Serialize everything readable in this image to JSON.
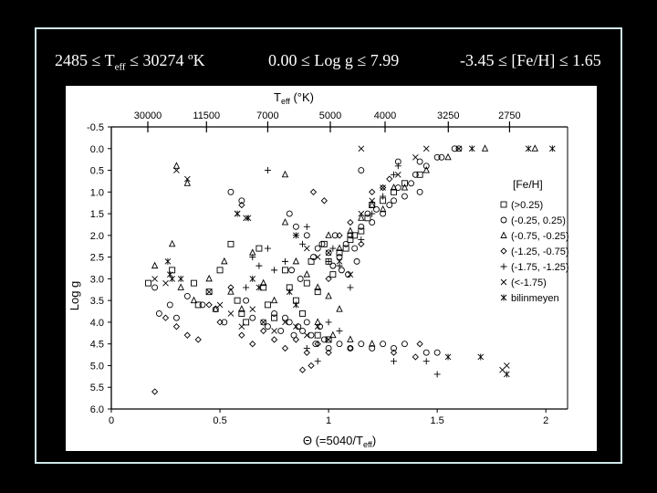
{
  "header": {
    "teff_range": {
      "low": "2485",
      "rel1": "≤",
      "var": "T",
      "var_sub": "eff",
      "rel2": "≤",
      "high": "30274 ºK"
    },
    "logg_range": "0.00 ≤ Log g ≤ 7.99",
    "feh_range": "-3.45 ≤ [Fe/H] ≤ 1.65"
  },
  "chart_data": {
    "type": "scatter",
    "title": "",
    "xlabel": {
      "main": "Θ (=5040/T",
      "sub": "eff",
      "end": ")"
    },
    "ylabel": "Log g",
    "top_axis_label": {
      "main": "T",
      "sub": "eff",
      "end": " (°K)"
    },
    "xlim": [
      0,
      2.1
    ],
    "ylim": [
      -0.5,
      6.0
    ],
    "y_inverted": true,
    "grid": false,
    "legend_placement": "right",
    "x_ticks": [
      {
        "value": 0,
        "label": "0"
      },
      {
        "value": 0.5,
        "label": "0.5"
      },
      {
        "value": 1,
        "label": "1"
      },
      {
        "value": 1.5,
        "label": "1.5"
      },
      {
        "value": 2,
        "label": "2"
      }
    ],
    "y_ticks": [
      {
        "value": -0.5,
        "label": "-0.5"
      },
      {
        "value": 0.0,
        "label": "0.0"
      },
      {
        "value": 0.5,
        "label": "0.5"
      },
      {
        "value": 1.0,
        "label": "1.0"
      },
      {
        "value": 1.5,
        "label": "1.5"
      },
      {
        "value": 2.0,
        "label": "2.0"
      },
      {
        "value": 2.5,
        "label": "2.5"
      },
      {
        "value": 3.0,
        "label": "3.0"
      },
      {
        "value": 3.5,
        "label": "3.5"
      },
      {
        "value": 4.0,
        "label": "4.0"
      },
      {
        "value": 4.5,
        "label": "4.5"
      },
      {
        "value": 5.0,
        "label": "5.0"
      },
      {
        "value": 5.5,
        "label": "5.5"
      },
      {
        "value": 6.0,
        "label": "6.0"
      }
    ],
    "top_ticks": [
      {
        "theta": 0.168,
        "label": "30000"
      },
      {
        "theta": 0.438,
        "label": "11500"
      },
      {
        "theta": 0.72,
        "label": "7000"
      },
      {
        "theta": 1.008,
        "label": "5000"
      },
      {
        "theta": 1.26,
        "label": "4000"
      },
      {
        "theta": 1.551,
        "label": "3250"
      },
      {
        "theta": 1.833,
        "label": "2750"
      }
    ],
    "legend_title": "[Fe/H]",
    "series": [
      {
        "name": "(>0.25)",
        "marker": "square",
        "points": [
          [
            0.17,
            3.1
          ],
          [
            0.28,
            2.8
          ],
          [
            0.38,
            3.1
          ],
          [
            0.4,
            3.6
          ],
          [
            0.45,
            3.3
          ],
          [
            0.5,
            2.8
          ],
          [
            0.55,
            2.2
          ],
          [
            0.58,
            3.5
          ],
          [
            0.6,
            3.8
          ],
          [
            0.62,
            4.0
          ],
          [
            0.68,
            2.3
          ],
          [
            0.7,
            3.2
          ],
          [
            0.72,
            3.6
          ],
          [
            0.75,
            3.9
          ],
          [
            0.8,
            2.8
          ],
          [
            0.82,
            3.2
          ],
          [
            0.85,
            3.5
          ],
          [
            0.88,
            3.8
          ],
          [
            0.9,
            3.1
          ],
          [
            0.92,
            2.6
          ],
          [
            0.95,
            3.3
          ],
          [
            0.98,
            2.2
          ],
          [
            1.0,
            2.6
          ],
          [
            1.02,
            2.9
          ],
          [
            1.05,
            2.4
          ],
          [
            1.08,
            2.3
          ],
          [
            1.1,
            2.1
          ],
          [
            1.12,
            2.0
          ],
          [
            1.15,
            1.9
          ],
          [
            1.18,
            1.6
          ],
          [
            1.2,
            1.3
          ],
          [
            1.25,
            1.2
          ],
          [
            1.3,
            1.0
          ],
          [
            1.35,
            0.8
          ],
          [
            1.42,
            0.6
          ],
          [
            0.95,
            4.3
          ],
          [
            1.0,
            4.4
          ]
        ]
      },
      {
        "name": "(-0.25, 0.25)",
        "marker": "circle",
        "points": [
          [
            0.2,
            3.2
          ],
          [
            0.22,
            3.8
          ],
          [
            0.27,
            3.6
          ],
          [
            0.3,
            3.9
          ],
          [
            0.35,
            3.4
          ],
          [
            0.42,
            3.6
          ],
          [
            0.48,
            3.7
          ],
          [
            0.52,
            4.0
          ],
          [
            0.55,
            1.0
          ],
          [
            0.6,
            1.2
          ],
          [
            0.62,
            3.5
          ],
          [
            0.65,
            3.9
          ],
          [
            0.7,
            4.0
          ],
          [
            0.72,
            4.1
          ],
          [
            0.75,
            3.8
          ],
          [
            0.78,
            4.2
          ],
          [
            0.8,
            3.9
          ],
          [
            0.82,
            4.0
          ],
          [
            0.84,
            4.3
          ],
          [
            0.86,
            4.1
          ],
          [
            0.88,
            4.2
          ],
          [
            0.9,
            4.0
          ],
          [
            0.92,
            4.3
          ],
          [
            0.94,
            4.5
          ],
          [
            0.96,
            4.1
          ],
          [
            0.98,
            4.4
          ],
          [
            1.0,
            4.6
          ],
          [
            1.05,
            4.5
          ],
          [
            1.1,
            4.6
          ],
          [
            1.15,
            4.5
          ],
          [
            1.2,
            4.6
          ],
          [
            1.25,
            4.5
          ],
          [
            1.3,
            4.6
          ],
          [
            1.35,
            4.5
          ],
          [
            1.45,
            4.7
          ],
          [
            1.5,
            4.7
          ],
          [
            0.82,
            1.5
          ],
          [
            0.85,
            1.8
          ],
          [
            0.9,
            2.0
          ],
          [
            0.95,
            2.3
          ],
          [
            1.0,
            2.4
          ],
          [
            1.02,
            2.7
          ],
          [
            1.05,
            2.5
          ],
          [
            1.08,
            2.2
          ],
          [
            1.1,
            2.0
          ],
          [
            1.12,
            2.3
          ],
          [
            1.15,
            1.8
          ],
          [
            1.18,
            1.5
          ],
          [
            1.2,
            1.7
          ],
          [
            1.22,
            1.4
          ],
          [
            1.25,
            1.5
          ],
          [
            1.28,
            1.3
          ],
          [
            1.3,
            1.2
          ],
          [
            1.32,
            0.9
          ],
          [
            1.35,
            1.1
          ],
          [
            1.38,
            0.8
          ],
          [
            1.4,
            0.6
          ],
          [
            1.42,
            1.0
          ],
          [
            1.45,
            0.4
          ],
          [
            1.5,
            0.2
          ],
          [
            1.52,
            0.2
          ],
          [
            1.58,
            0.0
          ],
          [
            1.6,
            0.0
          ],
          [
            1.15,
            0.5
          ],
          [
            1.32,
            0.3
          ],
          [
            1.42,
            0.3
          ],
          [
            0.83,
            2.8
          ],
          [
            0.87,
            3.0
          ],
          [
            0.93,
            2.5
          ],
          [
            0.97,
            2.2
          ],
          [
            1.03,
            2.0
          ],
          [
            1.06,
            2.8
          ],
          [
            1.09,
            2.9
          ],
          [
            1.13,
            2.6
          ]
        ]
      },
      {
        "name": "(-0.75, -0.25)",
        "marker": "triangle",
        "points": [
          [
            0.2,
            2.7
          ],
          [
            0.28,
            2.2
          ],
          [
            0.32,
            3.2
          ],
          [
            0.38,
            3.5
          ],
          [
            0.45,
            3.0
          ],
          [
            0.48,
            3.7
          ],
          [
            0.52,
            2.6
          ],
          [
            0.55,
            3.3
          ],
          [
            0.6,
            3.7
          ],
          [
            0.65,
            2.4
          ],
          [
            0.7,
            3.1
          ],
          [
            0.75,
            3.5
          ],
          [
            0.8,
            1.7
          ],
          [
            0.85,
            2.6
          ],
          [
            0.9,
            2.9
          ],
          [
            0.95,
            3.2
          ],
          [
            1.0,
            3.4
          ],
          [
            1.05,
            3.7
          ],
          [
            0.3,
            0.4
          ],
          [
            0.35,
            0.8
          ],
          [
            0.8,
            0.6
          ],
          [
            1.0,
            2.0
          ],
          [
            1.05,
            2.3
          ],
          [
            1.1,
            1.9
          ],
          [
            1.15,
            1.6
          ],
          [
            1.2,
            1.3
          ],
          [
            1.25,
            1.4
          ],
          [
            1.3,
            0.9
          ],
          [
            1.35,
            0.9
          ],
          [
            1.45,
            0.5
          ],
          [
            1.55,
            0.2
          ],
          [
            1.72,
            0.0
          ],
          [
            1.95,
            0.0
          ],
          [
            1.02,
            4.3
          ],
          [
            1.1,
            4.4
          ],
          [
            1.2,
            4.5
          ],
          [
            0.95,
            4.0
          ]
        ]
      },
      {
        "name": "(-1.25, -0.75)",
        "marker": "diamond",
        "points": [
          [
            0.2,
            5.6
          ],
          [
            0.25,
            3.9
          ],
          [
            0.3,
            4.1
          ],
          [
            0.35,
            4.3
          ],
          [
            0.4,
            4.4
          ],
          [
            0.45,
            3.6
          ],
          [
            0.5,
            4.0
          ],
          [
            0.6,
            4.3
          ],
          [
            0.65,
            4.5
          ],
          [
            0.7,
            4.2
          ],
          [
            0.75,
            4.4
          ],
          [
            0.8,
            4.6
          ],
          [
            0.85,
            4.4
          ],
          [
            0.9,
            4.7
          ],
          [
            0.95,
            4.5
          ],
          [
            1.0,
            4.7
          ],
          [
            0.88,
            5.1
          ],
          [
            0.92,
            5.0
          ],
          [
            1.1,
            4.6
          ],
          [
            1.3,
            4.7
          ],
          [
            1.4,
            4.8
          ],
          [
            1.42,
            4.5
          ],
          [
            1.0,
            3.0
          ],
          [
            1.05,
            2.0
          ],
          [
            1.1,
            1.7
          ],
          [
            1.15,
            2.2
          ],
          [
            1.2,
            1.0
          ],
          [
            1.25,
            0.9
          ],
          [
            1.28,
            0.7
          ],
          [
            0.93,
            1.0
          ],
          [
            0.98,
            1.2
          ],
          [
            0.55,
            3.2
          ],
          [
            0.6,
            1.3
          ]
        ]
      },
      {
        "name": "(-1.75, -1.25)",
        "marker": "plus",
        "points": [
          [
            0.65,
            2.5
          ],
          [
            0.62,
            3.2
          ],
          [
            0.68,
            2.7
          ],
          [
            0.72,
            2.3
          ],
          [
            0.75,
            2.8
          ],
          [
            0.8,
            2.6
          ],
          [
            0.85,
            2.0
          ],
          [
            0.88,
            2.2
          ],
          [
            0.9,
            1.8
          ],
          [
            1.0,
            2.6
          ],
          [
            1.02,
            2.3
          ],
          [
            1.05,
            2.7
          ],
          [
            1.1,
            3.2
          ],
          [
            1.15,
            2.1
          ],
          [
            1.2,
            1.5
          ],
          [
            1.25,
            1.1
          ],
          [
            1.3,
            0.6
          ],
          [
            1.32,
            0.4
          ],
          [
            0.72,
            0.5
          ],
          [
            1.0,
            4.0
          ],
          [
            1.05,
            4.2
          ],
          [
            0.9,
            4.6
          ],
          [
            0.95,
            4.9
          ],
          [
            1.3,
            4.9
          ],
          [
            1.45,
            4.9
          ],
          [
            1.5,
            5.2
          ]
        ]
      },
      {
        "name": "(<-1.75)",
        "marker": "x",
        "points": [
          [
            0.2,
            3.0
          ],
          [
            0.25,
            3.1
          ],
          [
            0.3,
            0.5
          ],
          [
            0.35,
            0.7
          ],
          [
            0.45,
            3.3
          ],
          [
            0.5,
            3.6
          ],
          [
            0.55,
            3.8
          ],
          [
            0.6,
            4.1
          ],
          [
            0.65,
            3.7
          ],
          [
            0.7,
            4.0
          ],
          [
            0.75,
            4.2
          ],
          [
            0.8,
            4.0
          ],
          [
            0.85,
            4.1
          ],
          [
            0.9,
            4.3
          ],
          [
            0.95,
            4.1
          ],
          [
            1.0,
            4.4
          ],
          [
            0.85,
            2.0
          ],
          [
            0.9,
            2.3
          ],
          [
            0.95,
            2.5
          ],
          [
            1.0,
            2.4
          ],
          [
            1.05,
            2.6
          ],
          [
            1.1,
            2.9
          ],
          [
            1.15,
            1.5
          ],
          [
            1.2,
            1.2
          ],
          [
            1.25,
            0.9
          ],
          [
            1.32,
            0.6
          ],
          [
            1.4,
            0.2
          ],
          [
            1.45,
            0.0
          ],
          [
            0.58,
            1.5
          ],
          [
            0.62,
            1.6
          ],
          [
            1.15,
            0.0
          ],
          [
            1.6,
            0.0
          ],
          [
            1.8,
            5.1
          ],
          [
            1.82,
            5.0
          ]
        ]
      },
      {
        "name": "bilinmeyen",
        "marker": "asterisk",
        "points": [
          [
            0.26,
            2.6
          ],
          [
            0.27,
            2.9
          ],
          [
            0.28,
            3.0
          ],
          [
            0.32,
            3.0
          ],
          [
            0.58,
            1.5
          ],
          [
            0.63,
            1.6
          ],
          [
            0.65,
            3.0
          ],
          [
            0.68,
            3.2
          ],
          [
            0.82,
            3.3
          ],
          [
            0.85,
            3.6
          ],
          [
            1.66,
            0.0
          ],
          [
            1.7,
            4.8
          ],
          [
            1.92,
            0.0
          ],
          [
            2.03,
            0.0
          ],
          [
            1.55,
            4.8
          ],
          [
            1.82,
            5.2
          ]
        ]
      }
    ]
  }
}
